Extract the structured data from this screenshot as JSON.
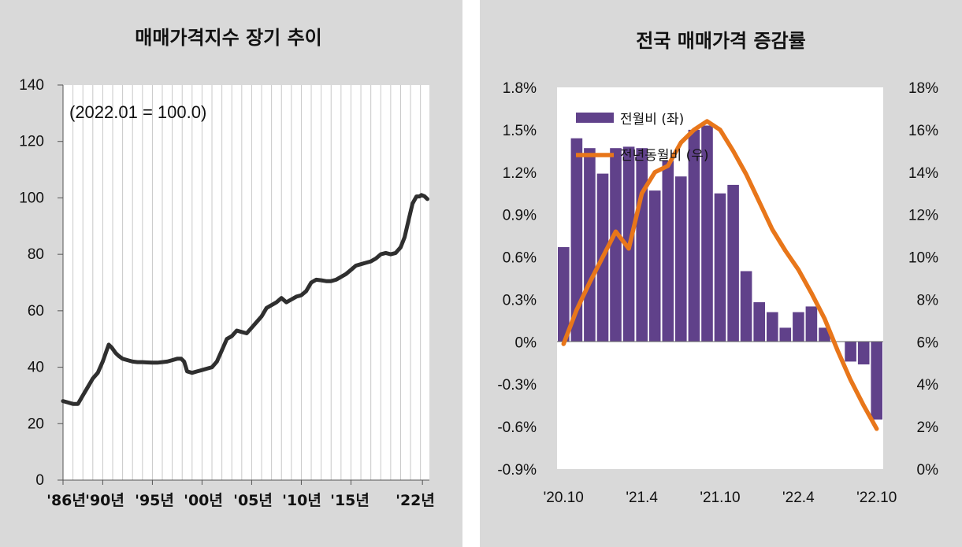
{
  "left_chart": {
    "title": "매매가격지수 장기 추이",
    "note": "(2022.01 = 100.0)",
    "colors": {
      "line": "#2f2f2f",
      "grid": "#c8c8c8",
      "background": "#ffffff",
      "panel": "#d9d9d9"
    },
    "y_ticks": [
      "0",
      "20",
      "40",
      "60",
      "80",
      "100",
      "140",
      "120"
    ],
    "x_ticks": [
      "'86년",
      "'90년",
      "'95년",
      "'00년",
      "'05년",
      "'10년",
      "'15년",
      "'22년"
    ]
  },
  "right_chart": {
    "title": "전국 매매가격 증감률",
    "colors": {
      "bar": "#60418a",
      "line": "#e8761a",
      "background": "#ffffff",
      "panel": "#d9d9d9"
    },
    "left_ticks": [
      "1.8%",
      "1.5%",
      "1.2%",
      "0.9%",
      "0.6%",
      "0.3%",
      "0%",
      "-0.3%",
      "-0.6%",
      "-0.9%"
    ],
    "right_ticks": [
      "18%",
      "16%",
      "14%",
      "12%",
      "10%",
      "8%",
      "6%",
      "4%",
      "2%",
      "0%"
    ],
    "x_ticks": [
      "'20.10",
      "'21.4",
      "'21.10",
      "'22.4",
      "'22.10"
    ],
    "legend_bar": "전월비 (좌)",
    "legend_line": "전년동월비 (우)"
  },
  "chart_data": [
    {
      "type": "line",
      "title": "매매가격지수 장기 추이",
      "annotation": "(2022.01 = 100.0)",
      "ylim": [
        0,
        140
      ],
      "xlim": [
        1986,
        2022.9
      ],
      "x_tick_labels": [
        "'86년",
        "'90년",
        "'95년",
        "'00년",
        "'05년",
        "'10년",
        "'15년",
        "'22년"
      ],
      "grid": true,
      "series": [
        {
          "x": [
            1986.0,
            1986.5,
            1987.0,
            1987.5,
            1988.0,
            1988.5,
            1989.0,
            1989.5,
            1990.0,
            1990.3,
            1990.6,
            1990.9,
            1991.3,
            1991.6,
            1992.0,
            1992.5,
            1993.0,
            1993.5,
            1994.0,
            1994.5,
            1995.0,
            1995.5,
            1996.0,
            1996.5,
            1997.0,
            1997.5,
            1997.9,
            1998.2,
            1998.5,
            1999.0,
            1999.5,
            2000.0,
            2000.5,
            2001.0,
            2001.5,
            2002.0,
            2002.5,
            2003.0,
            2003.5,
            2004.0,
            2004.5,
            2005.0,
            2005.5,
            2006.0,
            2006.5,
            2007.0,
            2007.5,
            2008.0,
            2008.5,
            2009.0,
            2009.5,
            2010.0,
            2010.5,
            2011.0,
            2011.5,
            2012.0,
            2012.5,
            2013.0,
            2013.5,
            2014.0,
            2014.5,
            2015.0,
            2015.5,
            2016.0,
            2016.5,
            2017.0,
            2017.5,
            2018.0,
            2018.5,
            2019.0,
            2019.5,
            2020.0,
            2020.4,
            2020.8,
            2021.2,
            2021.6,
            2021.9,
            2022.1,
            2022.4,
            2022.7
          ],
          "y": [
            28,
            27.5,
            27,
            27,
            30,
            33,
            36,
            38,
            42,
            45,
            48,
            47,
            45,
            44,
            43,
            42.5,
            42,
            41.8,
            41.8,
            41.7,
            41.6,
            41.6,
            41.8,
            42,
            42.5,
            43,
            43,
            42,
            38.5,
            38,
            38.5,
            39,
            39.5,
            40,
            42,
            46,
            50,
            51,
            53,
            52.5,
            52,
            54,
            56,
            58,
            61,
            62,
            63,
            64.5,
            63,
            64,
            65,
            65.5,
            67,
            70,
            71,
            70.8,
            70.5,
            70.5,
            71,
            72,
            73,
            74.5,
            76,
            76.5,
            77,
            77.5,
            78.5,
            80,
            80.5,
            80,
            80.5,
            82.5,
            86,
            92,
            98,
            100.5,
            100.5,
            101,
            100.6,
            99.6
          ]
        }
      ]
    },
    {
      "type": "bar",
      "title": "전국 매매가격 증감률",
      "x_tick_labels": [
        "'20.10",
        "'21.4",
        "'21.10",
        "'22.4",
        "'22.10"
      ],
      "ylim_left": [
        -0.9,
        1.8
      ],
      "ylim_right": [
        0,
        18
      ],
      "legend_position": "top-left",
      "series": [
        {
          "name": "전월비 (좌)",
          "type": "bar",
          "axis": "left",
          "values": [
            0.67,
            1.44,
            1.37,
            1.19,
            1.37,
            1.38,
            1.37,
            1.07,
            1.28,
            1.17,
            1.5,
            1.53,
            1.05,
            1.11,
            0.5,
            0.28,
            0.21,
            0.1,
            0.21,
            0.25,
            0.1,
            0.0,
            -0.14,
            -0.16,
            -0.55
          ]
        },
        {
          "name": "전년동월비 (우)",
          "type": "line",
          "axis": "right",
          "values": [
            5.9,
            7.5,
            8.8,
            10.0,
            11.2,
            10.4,
            13.0,
            14.0,
            14.3,
            15.4,
            16.0,
            16.4,
            16.0,
            15.0,
            13.9,
            12.6,
            11.3,
            10.3,
            9.4,
            8.3,
            7.1,
            5.6,
            4.2,
            3.0,
            1.9
          ]
        }
      ]
    }
  ]
}
